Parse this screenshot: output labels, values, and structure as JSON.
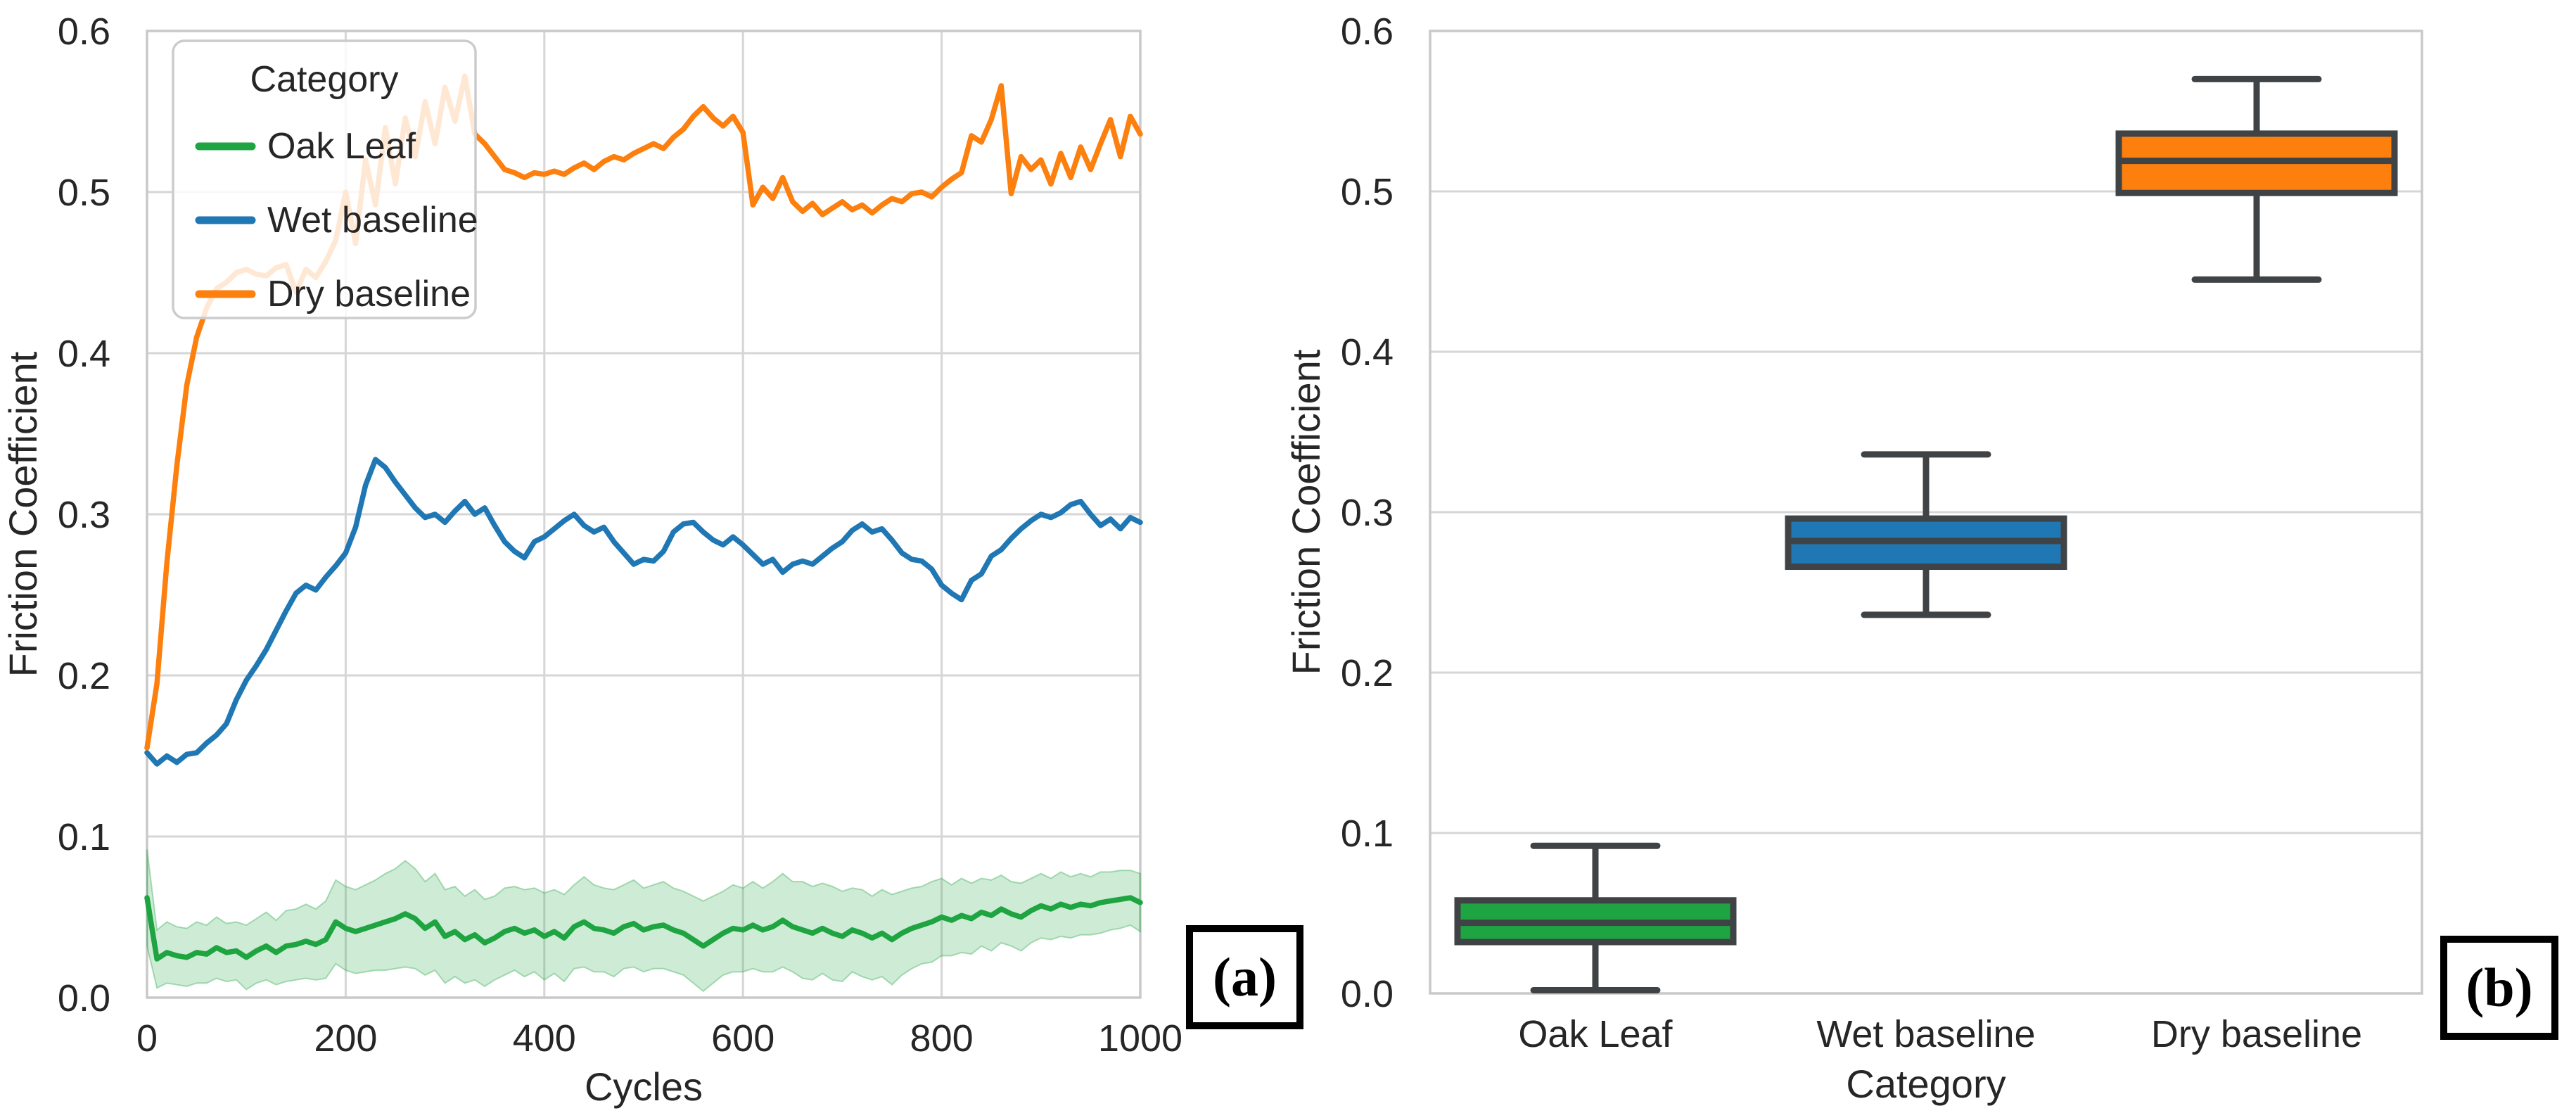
{
  "styles": {
    "background": "#ffffff",
    "grid_color": "#d6d6d6",
    "spine_color": "#c9c9c9",
    "text_color": "#262626",
    "box_edge_color": "#3f4345",
    "legend_border_color": "#cccccc",
    "legend_fill": "rgba(255,255,255,0.82)"
  },
  "chart_data": [
    {
      "type": "line",
      "panel_label": "(a)",
      "xlabel": "Cycles",
      "ylabel": "Friction Coefficient",
      "xlim": [
        0,
        1000
      ],
      "ylim": [
        0,
        0.6
      ],
      "x_ticks": [
        0,
        200,
        400,
        600,
        800,
        1000
      ],
      "y_tick_labels": [
        "0.0",
        "0.1",
        "0.2",
        "0.3",
        "0.4",
        "0.5",
        "0.6"
      ],
      "grid": true,
      "x_step": 10,
      "legend": {
        "title": "Category",
        "position": "upper left",
        "items": [
          "Oak Leaf",
          "Wet baseline",
          "Dry baseline"
        ]
      },
      "series": [
        {
          "name": "Oak Leaf",
          "color": "#1EA440",
          "values": [
            0.062,
            0.024,
            0.028,
            0.026,
            0.025,
            0.028,
            0.027,
            0.031,
            0.028,
            0.029,
            0.025,
            0.029,
            0.032,
            0.028,
            0.032,
            0.033,
            0.035,
            0.033,
            0.036,
            0.047,
            0.043,
            0.041,
            0.043,
            0.045,
            0.047,
            0.049,
            0.052,
            0.049,
            0.043,
            0.047,
            0.038,
            0.041,
            0.036,
            0.039,
            0.034,
            0.037,
            0.041,
            0.043,
            0.04,
            0.042,
            0.038,
            0.041,
            0.037,
            0.044,
            0.047,
            0.043,
            0.042,
            0.04,
            0.044,
            0.046,
            0.042,
            0.044,
            0.045,
            0.042,
            0.04,
            0.036,
            0.032,
            0.036,
            0.04,
            0.043,
            0.042,
            0.045,
            0.042,
            0.044,
            0.048,
            0.044,
            0.042,
            0.04,
            0.043,
            0.04,
            0.038,
            0.042,
            0.04,
            0.037,
            0.04,
            0.036,
            0.04,
            0.043,
            0.045,
            0.047,
            0.05,
            0.048,
            0.051,
            0.049,
            0.053,
            0.051,
            0.055,
            0.052,
            0.05,
            0.054,
            0.057,
            0.055,
            0.058,
            0.056,
            0.058,
            0.057,
            0.059,
            0.06,
            0.061,
            0.062,
            0.059
          ],
          "band_halfwidth": [
            0.03,
            0.018,
            0.019,
            0.018,
            0.018,
            0.019,
            0.018,
            0.019,
            0.018,
            0.018,
            0.02,
            0.02,
            0.021,
            0.02,
            0.022,
            0.022,
            0.023,
            0.022,
            0.024,
            0.026,
            0.026,
            0.026,
            0.027,
            0.028,
            0.03,
            0.031,
            0.033,
            0.031,
            0.029,
            0.03,
            0.029,
            0.028,
            0.027,
            0.028,
            0.027,
            0.026,
            0.027,
            0.026,
            0.027,
            0.026,
            0.027,
            0.026,
            0.027,
            0.026,
            0.028,
            0.027,
            0.026,
            0.027,
            0.026,
            0.027,
            0.026,
            0.026,
            0.027,
            0.026,
            0.026,
            0.027,
            0.028,
            0.027,
            0.026,
            0.027,
            0.026,
            0.027,
            0.026,
            0.028,
            0.029,
            0.028,
            0.03,
            0.029,
            0.028,
            0.029,
            0.028,
            0.026,
            0.027,
            0.026,
            0.027,
            0.028,
            0.026,
            0.025,
            0.024,
            0.025,
            0.024,
            0.022,
            0.023,
            0.022,
            0.021,
            0.022,
            0.021,
            0.02,
            0.021,
            0.02,
            0.02,
            0.019,
            0.02,
            0.019,
            0.019,
            0.018,
            0.019,
            0.018,
            0.018,
            0.017,
            0.018
          ]
        },
        {
          "name": "Wet baseline",
          "color": "#1F77B4",
          "values": [
            0.152,
            0.145,
            0.15,
            0.146,
            0.151,
            0.152,
            0.158,
            0.163,
            0.17,
            0.185,
            0.197,
            0.206,
            0.216,
            0.228,
            0.24,
            0.251,
            0.256,
            0.253,
            0.261,
            0.268,
            0.276,
            0.292,
            0.318,
            0.334,
            0.329,
            0.32,
            0.312,
            0.304,
            0.298,
            0.3,
            0.295,
            0.302,
            0.308,
            0.3,
            0.304,
            0.293,
            0.283,
            0.277,
            0.273,
            0.283,
            0.286,
            0.291,
            0.296,
            0.3,
            0.293,
            0.289,
            0.292,
            0.283,
            0.276,
            0.269,
            0.272,
            0.271,
            0.277,
            0.289,
            0.294,
            0.295,
            0.289,
            0.284,
            0.281,
            0.286,
            0.281,
            0.275,
            0.269,
            0.272,
            0.264,
            0.269,
            0.271,
            0.269,
            0.274,
            0.279,
            0.283,
            0.29,
            0.294,
            0.289,
            0.291,
            0.284,
            0.276,
            0.272,
            0.271,
            0.266,
            0.256,
            0.251,
            0.247,
            0.259,
            0.263,
            0.274,
            0.278,
            0.285,
            0.291,
            0.296,
            0.3,
            0.298,
            0.301,
            0.306,
            0.308,
            0.3,
            0.293,
            0.297,
            0.291,
            0.298,
            0.295
          ]
        },
        {
          "name": "Dry baseline",
          "color": "#FD7F0E",
          "values": [
            0.155,
            0.195,
            0.27,
            0.33,
            0.38,
            0.41,
            0.428,
            0.44,
            0.444,
            0.45,
            0.452,
            0.449,
            0.448,
            0.453,
            0.455,
            0.438,
            0.452,
            0.447,
            0.457,
            0.47,
            0.5,
            0.468,
            0.52,
            0.492,
            0.54,
            0.505,
            0.546,
            0.522,
            0.556,
            0.53,
            0.565,
            0.544,
            0.572,
            0.536,
            0.53,
            0.522,
            0.514,
            0.512,
            0.509,
            0.512,
            0.511,
            0.513,
            0.511,
            0.515,
            0.518,
            0.514,
            0.519,
            0.522,
            0.52,
            0.524,
            0.527,
            0.53,
            0.527,
            0.534,
            0.539,
            0.547,
            0.553,
            0.546,
            0.541,
            0.547,
            0.537,
            0.492,
            0.503,
            0.496,
            0.509,
            0.494,
            0.488,
            0.493,
            0.486,
            0.49,
            0.494,
            0.489,
            0.492,
            0.487,
            0.492,
            0.496,
            0.494,
            0.499,
            0.5,
            0.497,
            0.503,
            0.508,
            0.512,
            0.535,
            0.531,
            0.545,
            0.566,
            0.499,
            0.522,
            0.514,
            0.52,
            0.505,
            0.524,
            0.509,
            0.528,
            0.514,
            0.53,
            0.545,
            0.522,
            0.547,
            0.536
          ]
        }
      ]
    },
    {
      "type": "box",
      "panel_label": "(b)",
      "xlabel": "Category",
      "ylabel": "Friction Coefficient",
      "ylim": [
        0,
        0.6
      ],
      "y_tick_labels": [
        "0.0",
        "0.1",
        "0.2",
        "0.3",
        "0.4",
        "0.5",
        "0.6"
      ],
      "grid": true,
      "categories": [
        "Oak Leaf",
        "Wet baseline",
        "Dry baseline"
      ],
      "boxes": [
        {
          "category": "Oak Leaf",
          "color": "#1EA440",
          "whisker_low": 0.002,
          "q1": 0.032,
          "median": 0.044,
          "q3": 0.058,
          "whisker_high": 0.092
        },
        {
          "category": "Wet baseline",
          "color": "#1F77B4",
          "whisker_low": 0.236,
          "q1": 0.266,
          "median": 0.282,
          "q3": 0.296,
          "whisker_high": 0.336
        },
        {
          "category": "Dry baseline",
          "color": "#FD7F0E",
          "whisker_low": 0.445,
          "q1": 0.499,
          "median": 0.519,
          "q3": 0.536,
          "whisker_high": 0.57
        }
      ]
    }
  ]
}
